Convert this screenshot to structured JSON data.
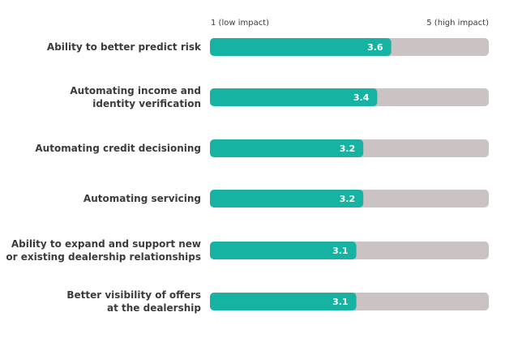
{
  "chart_data": {
    "type": "bar",
    "orientation": "horizontal",
    "scale_min_label": "1 (low impact)",
    "scale_max_label": "5 (high impact)",
    "xlim": [
      1,
      5
    ],
    "grid": false,
    "categories": [
      [
        "Ability to better predict risk"
      ],
      [
        "Automating income and",
        "identity verification"
      ],
      [
        "Automating credit decisioning"
      ],
      [
        "Automating servicing"
      ],
      [
        "Ability to expand and support new",
        "or existing dealership relationships"
      ],
      [
        "Better visibility of offers",
        "at the dealership"
      ]
    ],
    "values": [
      3.6,
      3.4,
      3.2,
      3.2,
      3.1,
      3.1
    ],
    "value_labels": [
      "3.6",
      "3.4",
      "3.2",
      "3.2",
      "3.1",
      "3.1"
    ],
    "colors": {
      "bar": "#16b3a2",
      "track": "#cbc3c3",
      "value_text": "#ffffff",
      "label_text": "#3b3b3b",
      "scale_text": "#3b3b3b"
    }
  }
}
